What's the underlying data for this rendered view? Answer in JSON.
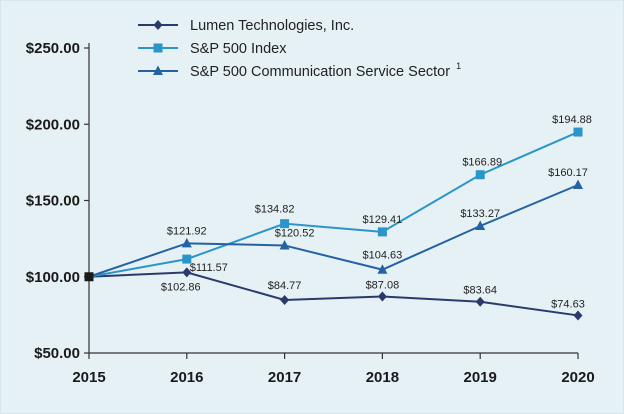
{
  "chart_data": {
    "type": "line",
    "title": "",
    "xlabel": "",
    "ylabel": "",
    "categories": [
      "2015",
      "2016",
      "2017",
      "2018",
      "2019",
      "2020"
    ],
    "ylim": [
      50,
      250
    ],
    "y_ticks": [
      50,
      100,
      150,
      200,
      250
    ],
    "y_tick_labels": [
      "$50.00",
      "$100.00",
      "$150.00",
      "$200.00",
      "$250.00"
    ],
    "start_label": "",
    "series": [
      {
        "name": "Lumen Technologies, Inc.",
        "legend_sup": "",
        "color": "#2b3a6b",
        "marker": "diamond",
        "values": [
          100,
          102.86,
          84.77,
          87.08,
          83.64,
          74.63
        ],
        "labels": [
          "",
          "$102.86",
          "$84.77",
          "$87.08",
          "$83.64",
          "$74.63"
        ]
      },
      {
        "name": "S&P 500 Index",
        "legend_sup": "",
        "color": "#2b95c9",
        "marker": "square",
        "values": [
          100,
          111.57,
          134.82,
          129.41,
          166.89,
          194.88
        ],
        "labels": [
          "",
          "$111.57",
          "$134.82",
          "$129.41",
          "$166.89",
          "$194.88"
        ]
      },
      {
        "name": "S&P 500 Communication Service Sector",
        "legend_sup": "1",
        "color": "#2462a2",
        "marker": "triangle",
        "values": [
          100,
          121.92,
          120.52,
          104.63,
          133.27,
          160.17
        ],
        "labels": [
          "",
          "$121.92",
          "$120.52",
          "$104.63",
          "$133.27",
          "$160.17"
        ]
      }
    ],
    "start_marker_color": "#1a1a1a"
  }
}
